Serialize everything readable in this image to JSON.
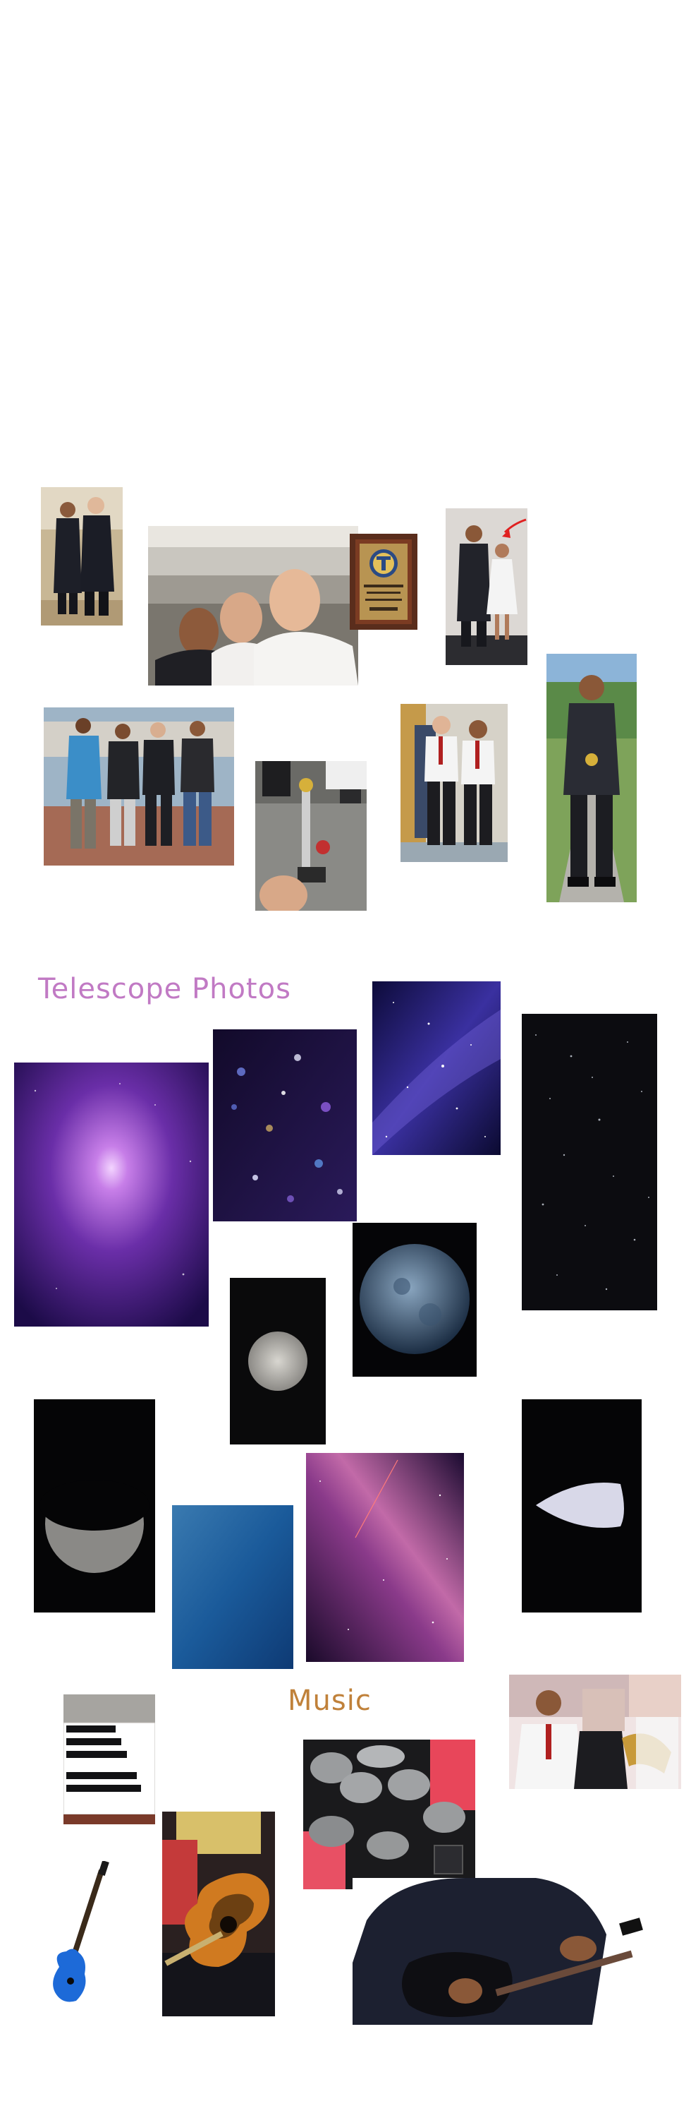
{
  "sections": {
    "telescope": {
      "title": "Telescope Photos",
      "color": "#c17ac4"
    },
    "music": {
      "title": "Music",
      "color": "#c0813a"
    }
  },
  "photos": {
    "school_events": [
      "two-students-suits-photo",
      "selfie-three-boys-photo",
      "award-plaque-photo",
      "student-with-girl-formal-photo",
      "four-students-outdoors-photo",
      "trophy-photo",
      "two-students-white-shirts-photo",
      "student-holding-medal-photo"
    ],
    "telescope": [
      "purple-nebula-photo",
      "bokeh-stars-photo",
      "milky-way-blue-photo",
      "dark-starfield-photo",
      "blue-moon-photo",
      "full-moon-photo",
      "crescent-moon-photo",
      "blue-sky-photo",
      "milky-way-pink-photo",
      "moon-edge-photo"
    ],
    "music": [
      "piano-keys-photo",
      "band-trumpet-photo",
      "drum-kit-photo",
      "blue-bass-guitar-photo",
      "acoustic-guitar-photo",
      "electric-guitar-playing-photo"
    ]
  }
}
